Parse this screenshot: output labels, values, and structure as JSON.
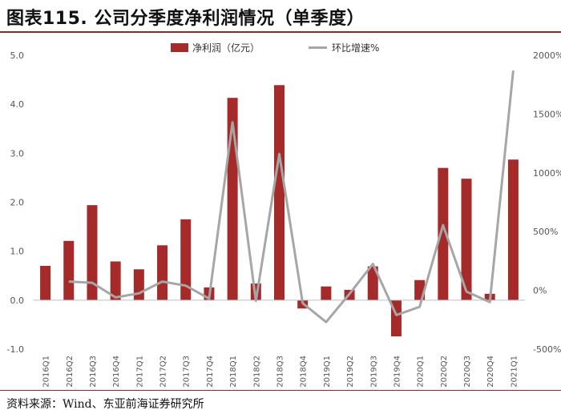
{
  "header": {
    "title": "图表115. 公司分季度净利润情况（单季度）"
  },
  "footer": {
    "source": "资料来源：Wind、东亚前海证券研究所"
  },
  "chart_data": {
    "type": "bar",
    "categories": [
      "2016Q1",
      "2016Q2",
      "2016Q3",
      "2016Q4",
      "2017Q1",
      "2017Q2",
      "2017Q3",
      "2017Q4",
      "2018Q1",
      "2018Q2",
      "2018Q3",
      "2018Q4",
      "2019Q1",
      "2019Q2",
      "2019Q3",
      "2019Q4",
      "2020Q1",
      "2020Q2",
      "2020Q3",
      "2020Q4",
      "2021Q1"
    ],
    "series": [
      {
        "name": "净利润（亿元）",
        "type": "bar",
        "axis": "left",
        "color": "#a52a2a",
        "values": [
          0.7,
          1.21,
          1.94,
          0.79,
          0.63,
          1.12,
          1.65,
          0.26,
          4.13,
          0.34,
          4.39,
          -0.17,
          0.28,
          0.21,
          0.69,
          -0.74,
          0.41,
          2.7,
          2.48,
          0.13,
          2.87
        ]
      },
      {
        "name": "环比增速%",
        "type": "line",
        "axis": "right",
        "color": "#a6a6a6",
        "values": [
          null,
          75,
          65,
          -60,
          -25,
          75,
          40,
          -70,
          1430,
          -90,
          1160,
          -110,
          -270,
          -30,
          225,
          -210,
          -140,
          555,
          -10,
          -100,
          1870
        ]
      }
    ],
    "ylim_left": [
      -1.0,
      5.0
    ],
    "yticks_left": [
      "-1.0",
      "0.0",
      "1.0",
      "2.0",
      "3.0",
      "4.0",
      "5.0"
    ],
    "ylim_right": [
      -500,
      2000
    ],
    "yticks_right": [
      "-500%",
      "0%",
      "500%",
      "1000%",
      "1500%",
      "2000%"
    ],
    "xlabel": "",
    "ylabel": "",
    "grid": false,
    "legend_position": "top-center"
  }
}
